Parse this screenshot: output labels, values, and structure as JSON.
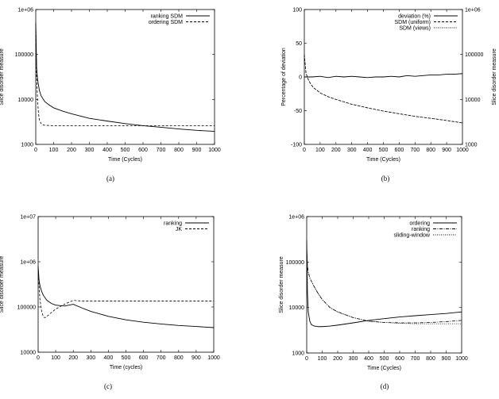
{
  "chart_data": [
    {
      "type": "line",
      "caption": "(a)",
      "xlabel": "Time (Cycles)",
      "ylabel": "Slice disorder measure",
      "xlim": [
        0,
        1000
      ],
      "ylim": [
        1000,
        1000000
      ],
      "yscale": "log",
      "xticks": [
        "0",
        "100",
        "200",
        "300",
        "400",
        "500",
        "600",
        "700",
        "800",
        "900",
        "1000"
      ],
      "yticks": [
        "1000",
        "10000",
        "100000",
        "1e+06"
      ],
      "legend_position": "top-right",
      "series": [
        {
          "name": "ranking SDM",
          "style": "solid",
          "x": [
            0,
            5,
            10,
            20,
            30,
            50,
            75,
            100,
            150,
            200,
            300,
            400,
            500,
            600,
            700,
            800,
            900,
            1000
          ],
          "y": [
            500000,
            50000,
            28000,
            16000,
            12000,
            9000,
            7500,
            6500,
            5500,
            4800,
            3800,
            3300,
            2900,
            2600,
            2400,
            2200,
            2050,
            1950
          ]
        },
        {
          "name": "ordering SDM",
          "style": "dashed",
          "x": [
            0,
            5,
            10,
            15,
            20,
            30,
            40,
            60,
            100,
            200,
            400,
            600,
            800,
            1000
          ],
          "y": [
            500000,
            30000,
            10000,
            5000,
            3500,
            2900,
            2700,
            2650,
            2600,
            2600,
            2600,
            2600,
            2600,
            2600
          ]
        }
      ]
    },
    {
      "type": "line",
      "caption": "(b)",
      "xlabel": "Time (Cycles)",
      "ylabel": "Percentage of deviation",
      "ylabel_right": "Slice disorder measure",
      "xlim": [
        0,
        1000
      ],
      "ylim": [
        -100,
        100
      ],
      "ylim_right": [
        1000,
        1000000
      ],
      "yscale_right": "log",
      "xticks": [
        "0",
        "100",
        "200",
        "300",
        "400",
        "500",
        "600",
        "700",
        "800",
        "900",
        "1000"
      ],
      "yticks": [
        "-100",
        "-50",
        "0",
        "50",
        "100"
      ],
      "yticks_right": [
        "1000",
        "10000",
        "100000",
        "1e+06"
      ],
      "legend_position": "top-right",
      "series": [
        {
          "name": "deviation (%)",
          "style": "solid",
          "axis": "left",
          "x": [
            0,
            50,
            100,
            150,
            200,
            250,
            300,
            350,
            400,
            450,
            500,
            550,
            600,
            650,
            700,
            750,
            800,
            850,
            900,
            950,
            1000
          ],
          "y": [
            0,
            0,
            1,
            -1,
            1,
            0,
            1,
            0,
            -1,
            0,
            0,
            1,
            0,
            2,
            1,
            2,
            3,
            3,
            4,
            4,
            5
          ]
        },
        {
          "name": "SDM (uniform)",
          "style": "dashed",
          "axis": "right",
          "x": [
            0,
            10,
            20,
            40,
            60,
            100,
            150,
            200,
            300,
            400,
            500,
            600,
            700,
            800,
            900,
            1000
          ],
          "y": [
            100000,
            40000,
            30000,
            22000,
            18000,
            14000,
            11500,
            10000,
            7800,
            6500,
            5500,
            4800,
            4200,
            3800,
            3400,
            3000
          ]
        },
        {
          "name": "SDM (views)",
          "style": "dotted",
          "axis": "right",
          "x": [
            0,
            10,
            20,
            40,
            60,
            100,
            150,
            200,
            300,
            400,
            500,
            600,
            700,
            800,
            900,
            1000
          ],
          "y": [
            100000,
            40000,
            30000,
            22000,
            18000,
            14000,
            11500,
            10000,
            7800,
            6500,
            5500,
            4800,
            4200,
            3800,
            3400,
            3000
          ]
        }
      ]
    },
    {
      "type": "line",
      "caption": "(c)",
      "xlabel": "Time (cycles)",
      "ylabel": "Slice disorder measure",
      "xlim": [
        0,
        1000
      ],
      "ylim": [
        10000,
        10000000
      ],
      "yscale": "log",
      "xticks": [
        "0",
        "100",
        "200",
        "300",
        "400",
        "500",
        "600",
        "700",
        "800",
        "900",
        "1000"
      ],
      "yticks": [
        "10000",
        "100000",
        "1e+06",
        "1e+07"
      ],
      "legend_position": "top-right",
      "series": [
        {
          "name": "ranking",
          "style": "solid",
          "x": [
            0,
            5,
            10,
            20,
            30,
            50,
            75,
            100,
            150,
            200,
            250,
            300,
            400,
            500,
            600,
            700,
            800,
            900,
            1000
          ],
          "y": [
            800000,
            400000,
            300000,
            220000,
            180000,
            140000,
            120000,
            110000,
            105000,
            115000,
            95000,
            80000,
            62000,
            52000,
            46000,
            42000,
            39000,
            37000,
            35000
          ]
        },
        {
          "name": "JK",
          "style": "dashed",
          "x": [
            0,
            5,
            10,
            20,
            30,
            40,
            50,
            75,
            100,
            150,
            200,
            250,
            300,
            400,
            500,
            600,
            700,
            800,
            900,
            1000
          ],
          "y": [
            800000,
            300000,
            150000,
            80000,
            60000,
            58000,
            62000,
            75000,
            90000,
            115000,
            140000,
            135000,
            135000,
            135000,
            135000,
            135000,
            135000,
            135000,
            135000,
            135000
          ]
        }
      ]
    },
    {
      "type": "line",
      "caption": "(d)",
      "xlabel": "Time (Cycles)",
      "ylabel": "Slice disorder measure",
      "xlim": [
        0,
        1000
      ],
      "ylim": [
        1000,
        1000000
      ],
      "yscale": "log",
      "xticks": [
        "0",
        "100",
        "200",
        "300",
        "400",
        "500",
        "600",
        "700",
        "800",
        "900",
        "1000"
      ],
      "yticks": [
        "1000",
        "10000",
        "100000",
        "1e+06"
      ],
      "legend_position": "top-right",
      "series": [
        {
          "name": "ordering",
          "style": "solid",
          "x": [
            0,
            5,
            10,
            20,
            30,
            50,
            75,
            100,
            150,
            200,
            300,
            400,
            500,
            600,
            700,
            800,
            900,
            1000
          ],
          "y": [
            300000,
            20000,
            8000,
            5000,
            4200,
            3900,
            3800,
            3800,
            3900,
            4100,
            4600,
            5200,
            5700,
            6200,
            6600,
            7000,
            7400,
            8000
          ]
        },
        {
          "name": "ranking",
          "style": "dashdot",
          "x": [
            0,
            5,
            10,
            20,
            30,
            50,
            75,
            100,
            150,
            200,
            300,
            400,
            500,
            600,
            700,
            800,
            900,
            1000
          ],
          "y": [
            200000,
            80000,
            60000,
            45000,
            38000,
            28000,
            20000,
            15000,
            10000,
            8000,
            6000,
            5000,
            4700,
            4600,
            4600,
            4700,
            4900,
            5200
          ]
        },
        {
          "name": "sliding-window",
          "style": "dotted",
          "x": [
            0,
            5,
            10,
            20,
            30,
            50,
            75,
            100,
            150,
            200,
            300,
            400,
            500,
            600,
            700,
            800,
            900,
            1000
          ],
          "y": [
            200000,
            80000,
            60000,
            45000,
            38000,
            28000,
            20000,
            15000,
            10000,
            8000,
            6000,
            5000,
            4700,
            4500,
            4400,
            4400,
            4400,
            4400
          ]
        }
      ]
    }
  ]
}
